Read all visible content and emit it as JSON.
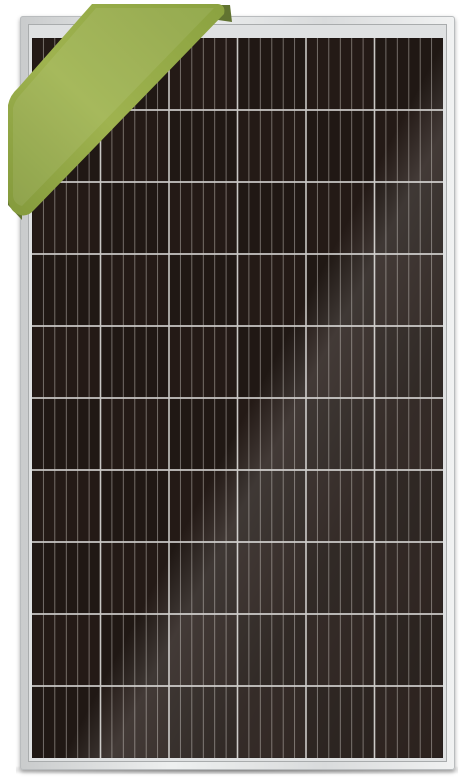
{
  "image": {
    "subject": "solar-panel",
    "cell_rows": 10,
    "cell_columns": 6,
    "fingers_per_cell": 6,
    "colors": {
      "background": "#ffffff",
      "frame": "#dfe1e2",
      "cells": "#1f1714",
      "grid_lines": "#c9c7c4",
      "ribbon": "#9aad4a",
      "ribbon_shadow": "#6f8236"
    }
  }
}
